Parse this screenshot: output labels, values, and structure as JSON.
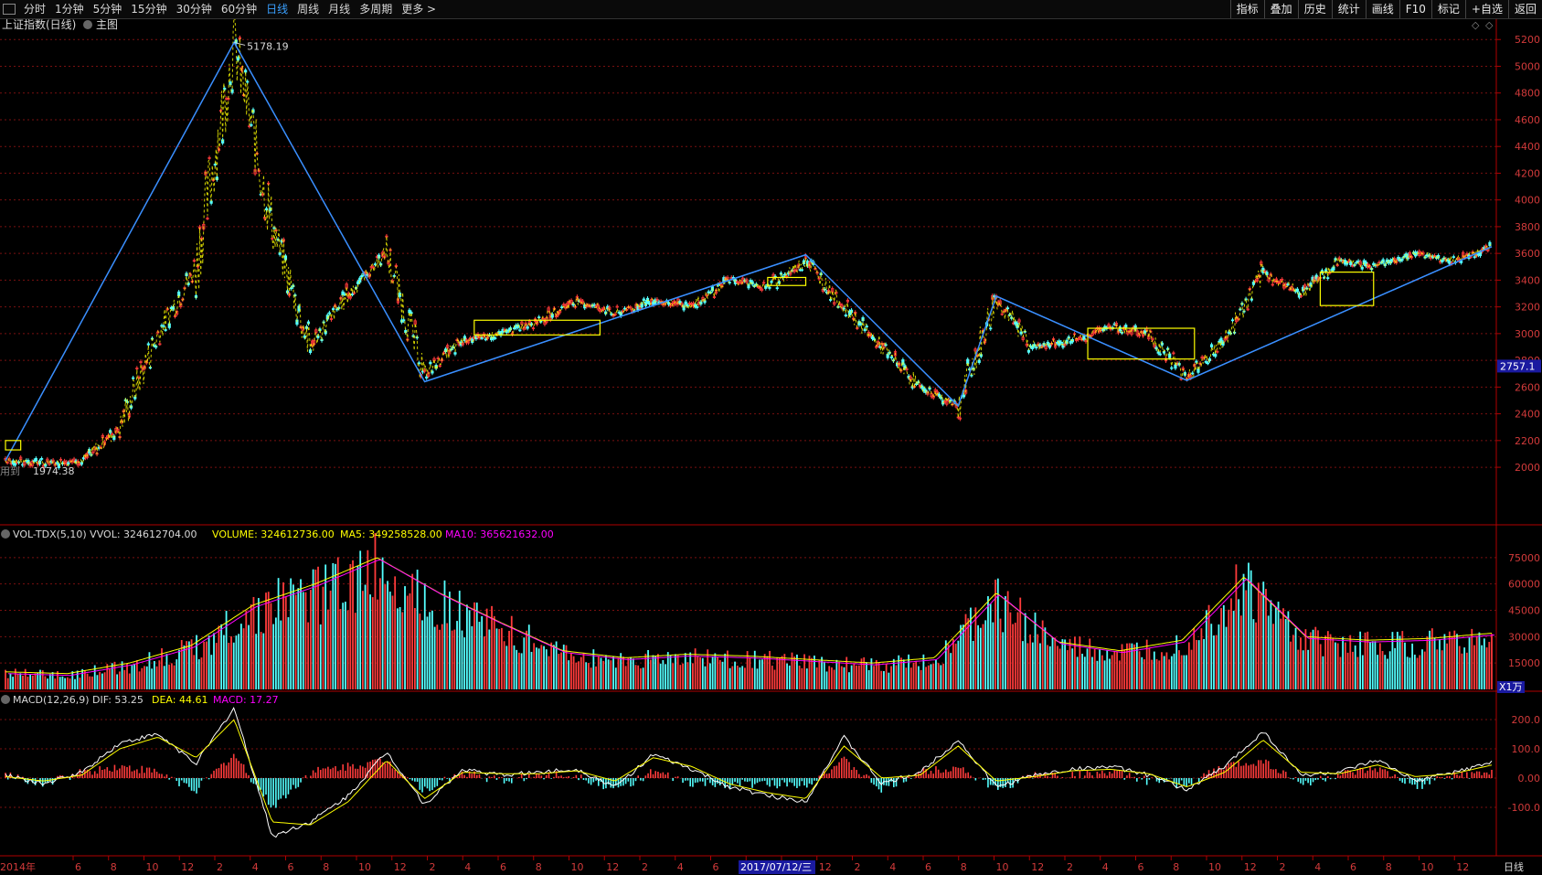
{
  "toolbar": {
    "periods": [
      "分时",
      "1分钟",
      "5分钟",
      "15分钟",
      "30分钟",
      "60分钟",
      "日线",
      "周线",
      "月线",
      "多周期",
      "更多 >"
    ],
    "active_period": "日线",
    "right_buttons": [
      "指标",
      "叠加",
      "历史",
      "统计",
      "画线",
      "F10",
      "标记",
      "+自选",
      "返回"
    ]
  },
  "main_panel": {
    "title": "上证指数(日线)",
    "main_label": "主图",
    "high_label": "5178.19",
    "low_label": "1974.38",
    "bottom_left_note": "用到",
    "price_tag": "2757.1"
  },
  "vol_panel": {
    "label": "VOL-TDX(5,10)",
    "vvol": "VVOL: 324612704.00",
    "volume": "VOLUME: 324612736.00",
    "ma5": "MA5: 349258528.00",
    "ma10": "MA10: 365621632.00",
    "unit": "X1万"
  },
  "macd_panel": {
    "label": "MACD(12,26,9)",
    "dif": "DIF: 53.25",
    "dea": "DEA: 44.61",
    "macd": "MACD: 17.27"
  },
  "bottom_axis": {
    "start": "2014年",
    "highlight": "2017/07/12/三",
    "right_label": "日线",
    "months": [
      "6",
      "8",
      "10",
      "12",
      "2",
      "4",
      "6",
      "8",
      "10",
      "12",
      "2",
      "4",
      "6",
      "8",
      "10",
      "12",
      "2",
      "4",
      "6",
      "8",
      "10",
      "12",
      "2",
      "4",
      "6",
      "8",
      "10",
      "12",
      "2",
      "4",
      "6",
      "8",
      "10",
      "12",
      "2",
      "4",
      "6",
      "8",
      "10",
      "12"
    ]
  },
  "colors": {
    "up": "#ff3b3b",
    "down": "#54ffff",
    "ma5": "#ffff00",
    "ma10": "#ff00ff",
    "trendline": "#3a8fff",
    "box": "#ffff00",
    "grid": "#7a1010",
    "axis": "#b00000"
  },
  "chart_data": [
    {
      "type": "line",
      "title": "上证指数(日线)",
      "yaxis_ticks": [
        2000,
        2200,
        2400,
        2600,
        2800,
        3000,
        3200,
        3400,
        3600,
        3800,
        4000,
        4200,
        4400,
        4600,
        4800,
        5000,
        5200
      ],
      "ylim": [
        1850,
        5270
      ],
      "x": [
        "2014-01",
        "2014-03",
        "2014-06",
        "2014-09",
        "2014-12",
        "2015-03",
        "2015-06",
        "2015-07",
        "2015-08",
        "2015-10",
        "2015-12",
        "2016-01",
        "2016-04",
        "2016-07",
        "2016-10",
        "2016-11",
        "2017-01",
        "2017-04",
        "2017-07",
        "2017-10",
        "2017-12",
        "2018-01",
        "2018-02",
        "2018-06",
        "2018-10",
        "2019-01",
        "2019-04",
        "2019-06",
        "2019-09",
        "2019-12",
        "2020-01",
        "2020-03",
        "2020-06",
        "2020-07",
        "2020-10",
        "2021-01",
        "2021-02",
        "2021-06",
        "2021-09",
        "2021-12"
      ],
      "series": [
        {
          "values": [
            2050,
            2030,
            2040,
            2300,
            3000,
            3500,
            5178,
            3800,
            2900,
            3300,
            3600,
            2700,
            2950,
            3000,
            3100,
            3250,
            3150,
            3250,
            3200,
            3400,
            3350,
            3550,
            3200,
            2900,
            2600,
            2460,
            3250,
            2900,
            2950,
            3050,
            3000,
            2680,
            2950,
            3450,
            3300,
            3550,
            3500,
            3600,
            3550,
            3650
          ]
        }
      ],
      "annotations": [
        "5178.19",
        "1974.38"
      ]
    },
    {
      "type": "bar",
      "title": "VOL-TDX(5,10)",
      "yaxis_ticks": [
        15000,
        30000,
        45000,
        60000,
        75000
      ],
      "unit": "X1万",
      "x": [
        "2014-01",
        "2014-06",
        "2014-10",
        "2014-12",
        "2015-02",
        "2015-05",
        "2015-06",
        "2015-08",
        "2015-10",
        "2016-01",
        "2016-06",
        "2016-12",
        "2017-06",
        "2017-12",
        "2018-06",
        "2018-12",
        "2019-03",
        "2019-06",
        "2019-12",
        "2020-03",
        "2020-07",
        "2020-10",
        "2021-02",
        "2021-06",
        "2021-12"
      ],
      "series": [
        {
          "name": "VOLUME",
          "values": [
            10000,
            9000,
            15000,
            25000,
            48000,
            60000,
            75000,
            55000,
            38000,
            22000,
            18000,
            20000,
            19000,
            17000,
            15000,
            18000,
            55000,
            27000,
            22000,
            28000,
            64000,
            30000,
            28000,
            29000,
            32000
          ]
        }
      ]
    },
    {
      "type": "line",
      "title": "MACD(12,26,9)",
      "yaxis_ticks": [
        -100,
        0,
        100,
        200
      ],
      "series": [
        {
          "name": "DIF",
          "values": [
            10,
            -20,
            20,
            120,
            150,
            50,
            240,
            -200,
            -150,
            -60,
            90,
            -90,
            30,
            10,
            20,
            30,
            -30,
            80,
            30,
            -30,
            -60,
            -80,
            140,
            -20,
            20,
            130,
            -30,
            10,
            30,
            40,
            10,
            -40,
            40,
            160,
            10,
            20,
            60,
            -10,
            20,
            53.25
          ]
        },
        {
          "name": "DEA",
          "values": [
            5,
            -10,
            10,
            100,
            140,
            70,
            200,
            -150,
            -160,
            -80,
            60,
            -70,
            20,
            15,
            15,
            25,
            -10,
            70,
            40,
            -20,
            -50,
            -70,
            110,
            0,
            10,
            110,
            -10,
            5,
            25,
            30,
            15,
            -30,
            20,
            130,
            20,
            15,
            45,
            5,
            15,
            44.61
          ]
        }
      ]
    }
  ]
}
